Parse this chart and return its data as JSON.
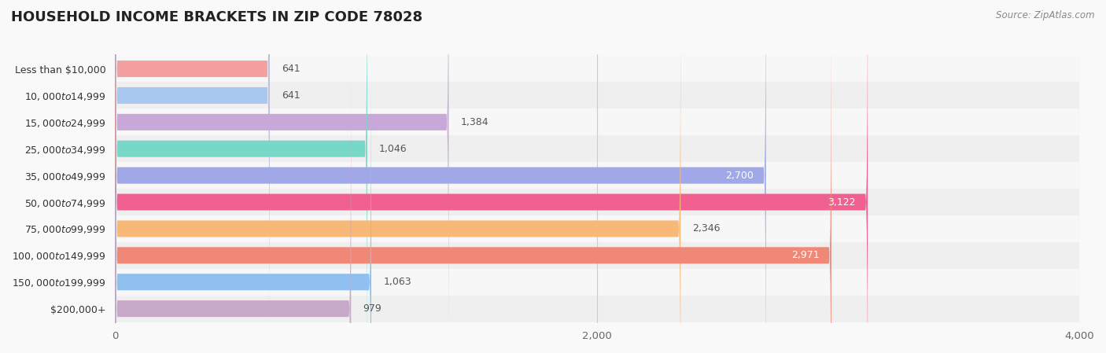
{
  "title": "HOUSEHOLD INCOME BRACKETS IN ZIP CODE 78028",
  "source": "Source: ZipAtlas.com",
  "categories": [
    "Less than $10,000",
    "$10,000 to $14,999",
    "$15,000 to $24,999",
    "$25,000 to $34,999",
    "$35,000 to $49,999",
    "$50,000 to $74,999",
    "$75,000 to $99,999",
    "$100,000 to $149,999",
    "$150,000 to $199,999",
    "$200,000+"
  ],
  "values": [
    641,
    641,
    1384,
    1046,
    2700,
    3122,
    2346,
    2971,
    1063,
    979
  ],
  "colors": [
    "#F4A0A0",
    "#A8C8F0",
    "#C8A8D8",
    "#78D8C8",
    "#A0A8E8",
    "#F06090",
    "#F8B878",
    "#F08878",
    "#90C0F0",
    "#C8A8C8"
  ],
  "xlim": [
    0,
    4000
  ],
  "xticks": [
    0,
    2000,
    4000
  ],
  "xtick_labels": [
    "0",
    "2,000",
    "4,000"
  ],
  "bar_height": 0.62,
  "bg_color": "#f9f9f9",
  "row_colors": [
    "#f7f7f7",
    "#efefef"
  ],
  "label_fontsize": 9.0,
  "value_fontsize": 9.0,
  "title_fontsize": 13
}
